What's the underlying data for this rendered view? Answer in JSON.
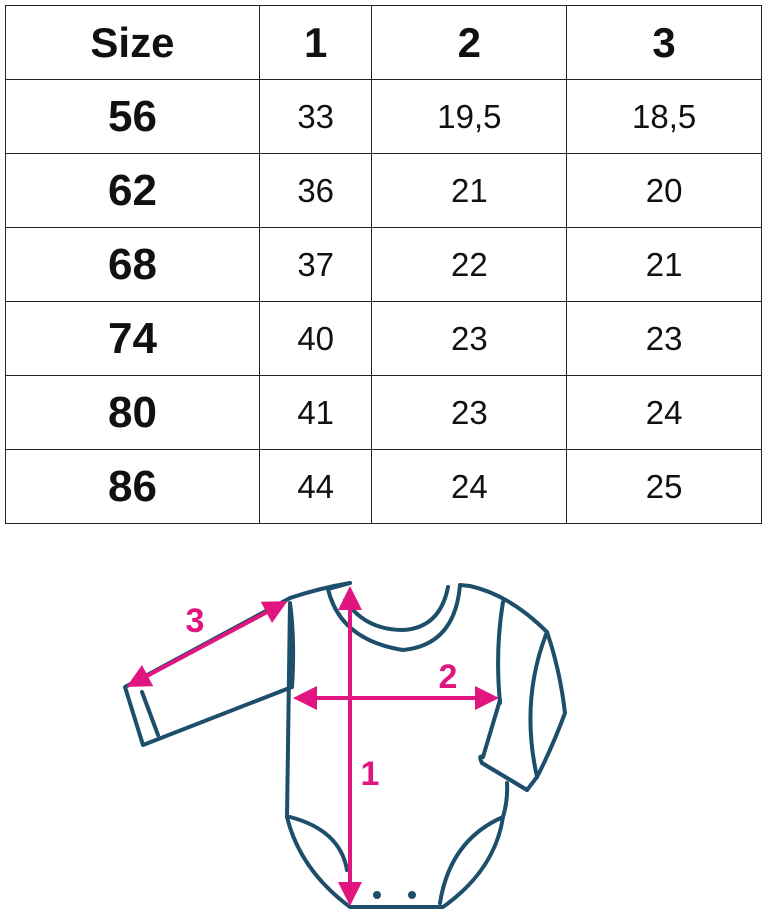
{
  "table": {
    "headers": [
      "Size",
      "1",
      "2",
      "3"
    ],
    "rows": [
      [
        "56",
        "33",
        "19,5",
        "18,5"
      ],
      [
        "62",
        "36",
        "21",
        "20"
      ],
      [
        "68",
        "37",
        "22",
        "21"
      ],
      [
        "74",
        "40",
        "23",
        "23"
      ],
      [
        "80",
        "41",
        "23",
        "24"
      ],
      [
        "86",
        "44",
        "24",
        "25"
      ]
    ]
  },
  "diagram": {
    "labels": {
      "length": "1",
      "chest": "2",
      "sleeve": "3"
    },
    "colors": {
      "outline": "#1d4e6b",
      "measure": "#e0157f"
    }
  }
}
